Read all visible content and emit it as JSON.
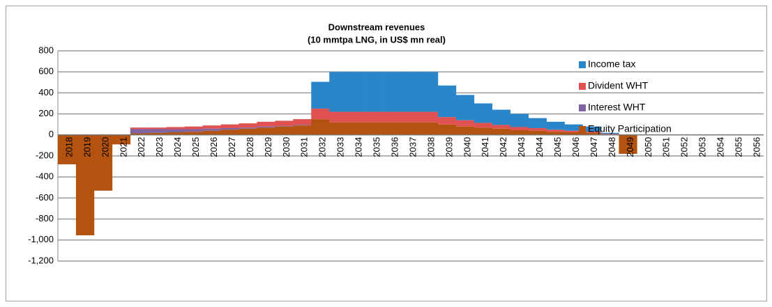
{
  "chart_data": {
    "type": "stacked_bar",
    "title": "Downstream revenues",
    "subtitle": "(10 mmtpa LNG, in US$ mn real)",
    "categories": [
      "2018",
      "2019",
      "2020",
      "2021",
      "2022",
      "2023",
      "2024",
      "2025",
      "2026",
      "2027",
      "2028",
      "2029",
      "2030",
      "2031",
      "2032",
      "2033",
      "2034",
      "2035",
      "2036",
      "2037",
      "2038",
      "2039",
      "2040",
      "2041",
      "2042",
      "2043",
      "2044",
      "2045",
      "2046",
      "2047",
      "2048",
      "2049",
      "2050",
      "2051",
      "2052",
      "2053",
      "2054",
      "2055",
      "2056"
    ],
    "series": [
      {
        "name": "Income tax",
        "color": "#2a86c9",
        "values": [
          0,
          0,
          0,
          0,
          0,
          0,
          0,
          0,
          0,
          0,
          0,
          0,
          0,
          0,
          255,
          380,
          380,
          380,
          380,
          380,
          380,
          300,
          240,
          185,
          145,
          125,
          95,
          75,
          60,
          48,
          10,
          0,
          0,
          0,
          0,
          0,
          0,
          0,
          0
        ]
      },
      {
        "name": "Divident WHT",
        "color": "#e05252",
        "values": [
          0,
          0,
          0,
          0,
          15,
          15,
          20,
          25,
          30,
          35,
          40,
          45,
          50,
          55,
          100,
          100,
          100,
          100,
          100,
          100,
          100,
          70,
          60,
          45,
          35,
          30,
          25,
          20,
          15,
          12,
          5,
          0,
          0,
          0,
          0,
          0,
          0,
          0,
          0
        ]
      },
      {
        "name": "Interest WHT",
        "color": "#8064a2",
        "values": [
          0,
          0,
          0,
          0,
          40,
          35,
          30,
          25,
          20,
          15,
          10,
          10,
          5,
          5,
          0,
          0,
          0,
          0,
          0,
          0,
          0,
          0,
          0,
          0,
          0,
          0,
          0,
          0,
          0,
          0,
          0,
          0,
          0,
          0,
          0,
          0,
          0,
          0,
          0
        ]
      },
      {
        "name": "Equity  Participation",
        "color": "#b4520f",
        "values": [
          -280,
          -955,
          -530,
          -90,
          15,
          20,
          25,
          30,
          40,
          50,
          60,
          70,
          80,
          90,
          150,
          120,
          120,
          120,
          120,
          120,
          120,
          100,
          80,
          70,
          60,
          45,
          40,
          30,
          25,
          20,
          5,
          -180,
          0,
          0,
          0,
          0,
          0,
          0,
          0
        ]
      }
    ],
    "ylim": [
      -1200,
      800
    ],
    "yticks": [
      {
        "value": -1200,
        "label": "-1,200"
      },
      {
        "value": -1000,
        "label": "-1,000"
      },
      -800,
      -600,
      -400,
      -200,
      0,
      200,
      400,
      600,
      800
    ],
    "grid": true,
    "legend": "top-right"
  }
}
